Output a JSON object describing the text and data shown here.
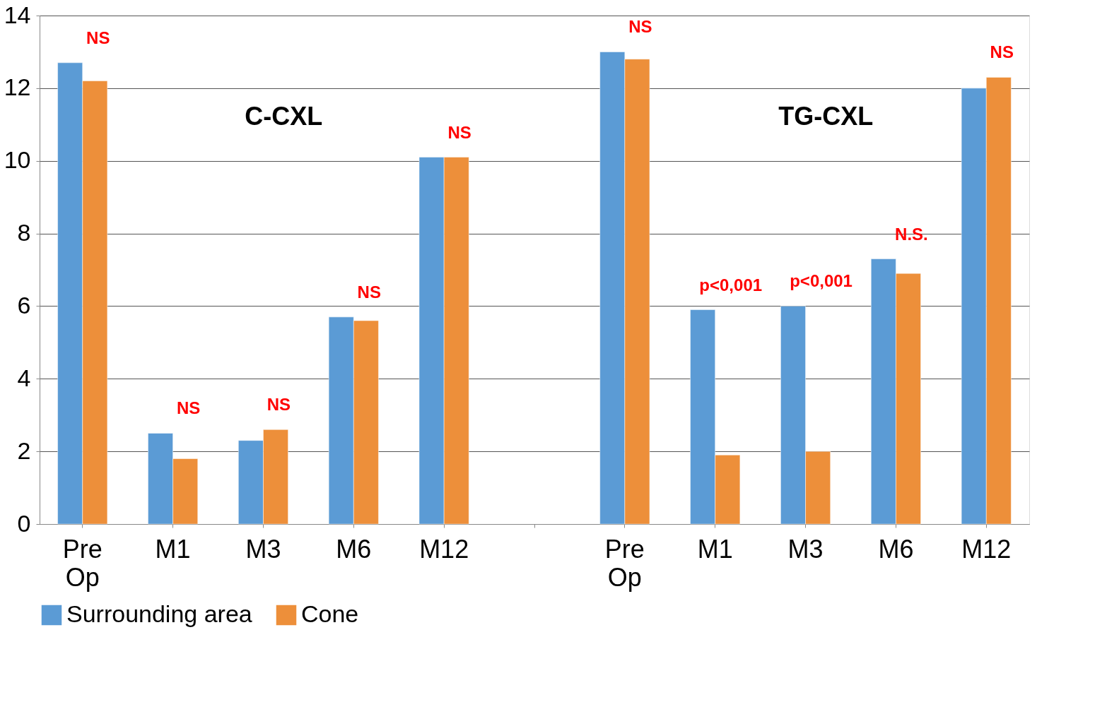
{
  "chart_data": {
    "type": "bar",
    "categories": [
      "Pre Op",
      "M1",
      "M3",
      "M6",
      "M12",
      null,
      "Pre Op",
      "M1",
      "M3",
      "M6",
      "M12"
    ],
    "series": [
      {
        "name": "Surrounding area",
        "color": "#5b9bd5",
        "values": [
          12.7,
          2.5,
          2.3,
          5.7,
          10.1,
          null,
          13.0,
          5.9,
          6.0,
          7.3,
          12.0
        ]
      },
      {
        "name": "Cone",
        "color": "#ed8f3a",
        "values": [
          12.2,
          1.8,
          2.6,
          5.6,
          10.1,
          null,
          12.8,
          1.9,
          2.0,
          6.9,
          12.3
        ]
      }
    ],
    "ylim": [
      0,
      14
    ],
    "yticks": [
      0,
      2,
      4,
      6,
      8,
      10,
      12,
      14
    ],
    "grid": "y",
    "legend": "bottom",
    "annotations": [
      "C-CXL",
      "TG-CXL",
      "NS",
      "NS",
      "NS",
      "NS",
      "NS",
      "NS",
      "p<0,001",
      "p<0,001",
      "N.S.",
      "NS"
    ]
  }
}
